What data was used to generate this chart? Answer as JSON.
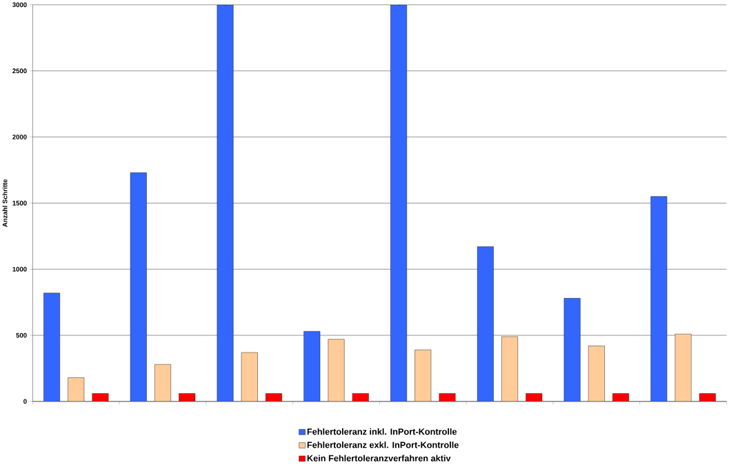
{
  "chart_data": {
    "type": "bar",
    "ylabel": "Anzahl Schritte",
    "categories": [
      null,
      null,
      null,
      null,
      null,
      null,
      null,
      null
    ],
    "series": [
      {
        "name": "Fehlertoleranz inkl. InPort-Kontrolle",
        "color": "#3366ff",
        "values": [
          820,
          1730,
          3000,
          530,
          3000,
          1170,
          780,
          1550
        ]
      },
      {
        "name": "Fehlertoleranz exkl. InPort-Kontrolle",
        "color": "#ffcc99",
        "values": [
          180,
          280,
          370,
          470,
          390,
          490,
          420,
          510
        ]
      },
      {
        "name": "Kein Fehlertoleranzverfahren aktiv",
        "color": "#ff0000",
        "values": [
          60,
          60,
          60,
          60,
          60,
          60,
          60,
          60
        ]
      }
    ],
    "ylim": [
      0,
      3000
    ],
    "yticks": [
      0,
      500,
      1000,
      1500,
      2000,
      2500,
      3000
    ],
    "grid": "y",
    "legend": "bottom"
  }
}
